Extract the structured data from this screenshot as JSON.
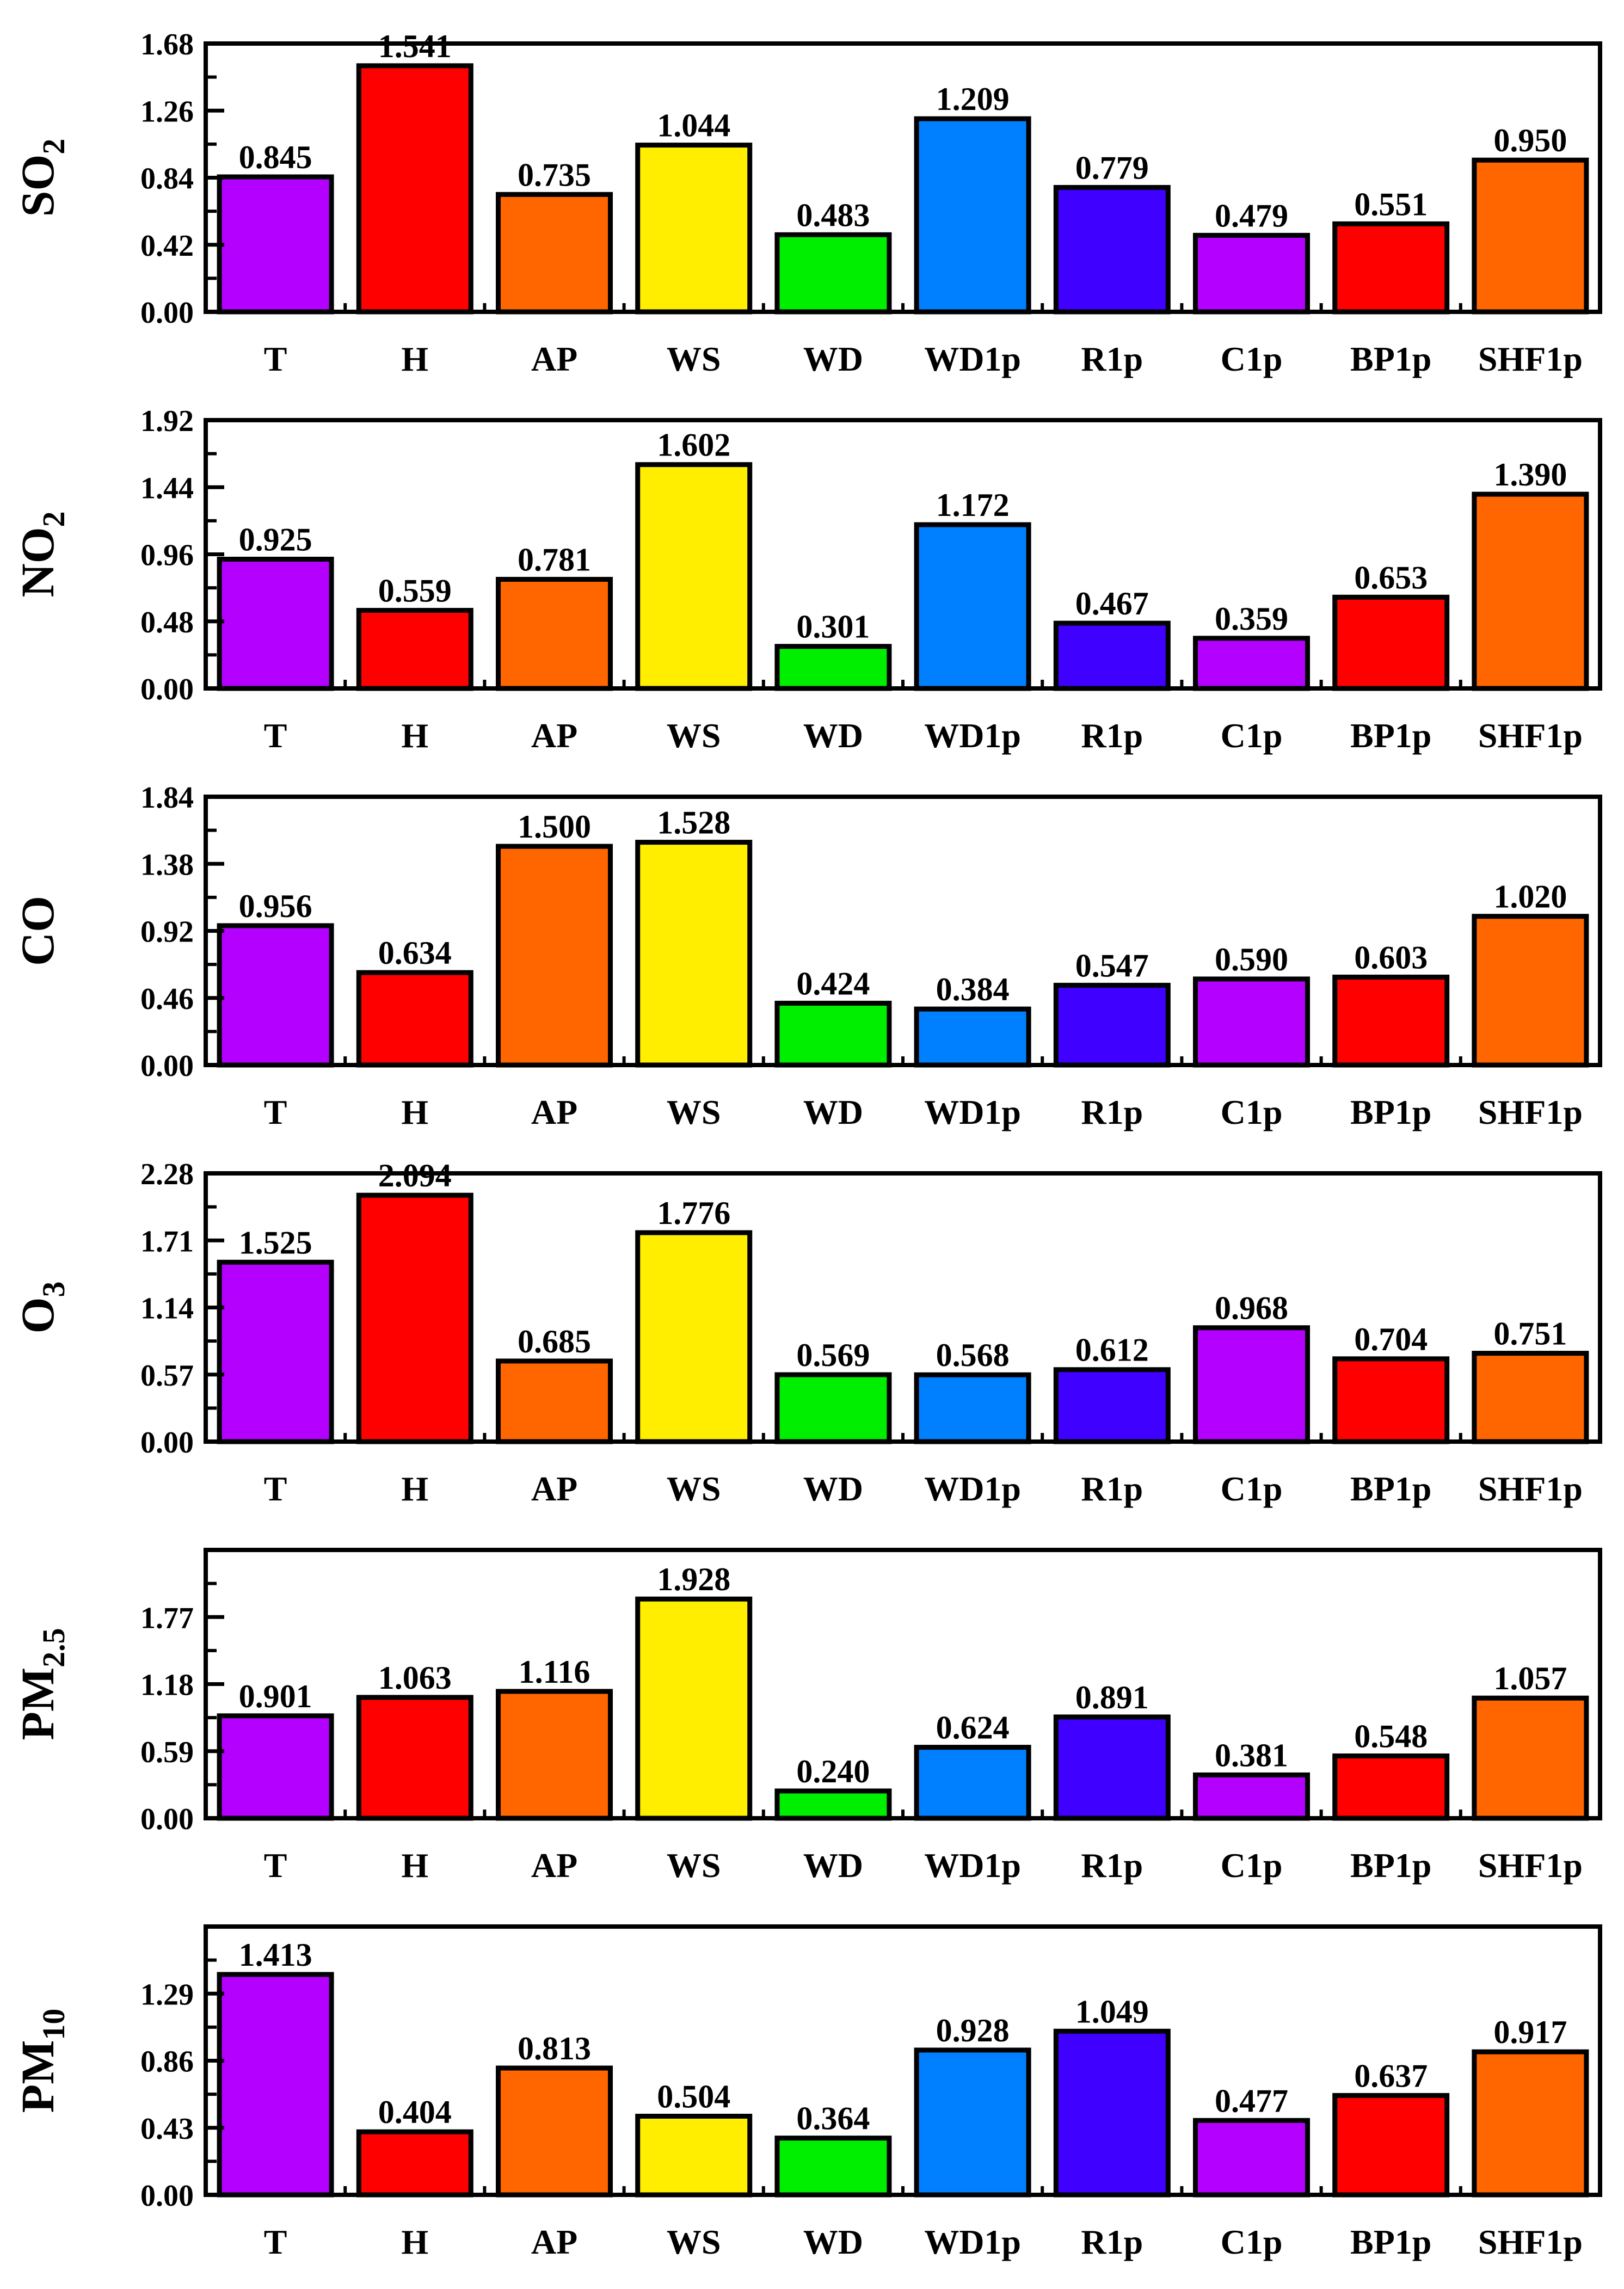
{
  "chart_data": [
    {
      "type": "bar",
      "ylabel": "SO",
      "ylabel_sub": "2",
      "categories": [
        "T",
        "H",
        "AP",
        "WS",
        "WD",
        "WD1p",
        "R1p",
        "C1p",
        "BP1p",
        "SHF1p"
      ],
      "values": [
        0.845,
        1.541,
        0.735,
        1.044,
        0.483,
        1.209,
        0.779,
        0.479,
        0.551,
        0.95
      ],
      "value_labels": [
        "0.845",
        "1.541",
        "0.735",
        "1.044",
        "0.483",
        "1.209",
        "0.779",
        "0.479",
        "0.551",
        "0.950"
      ],
      "ylim": [
        0,
        1.68
      ],
      "yticks": [
        0,
        0.42,
        0.84,
        1.26,
        1.68
      ],
      "ytick_labels": [
        "0.00",
        "0.42",
        "0.84",
        "1.26",
        "1.68"
      ]
    },
    {
      "type": "bar",
      "ylabel": "NO",
      "ylabel_sub": "2",
      "categories": [
        "T",
        "H",
        "AP",
        "WS",
        "WD",
        "WD1p",
        "R1p",
        "C1p",
        "BP1p",
        "SHF1p"
      ],
      "values": [
        0.925,
        0.559,
        0.781,
        1.602,
        0.301,
        1.172,
        0.467,
        0.359,
        0.653,
        1.39
      ],
      "value_labels": [
        "0.925",
        "0.559",
        "0.781",
        "1.602",
        "0.301",
        "1.172",
        "0.467",
        "0.359",
        "0.653",
        "1.390"
      ],
      "ylim": [
        0,
        1.92
      ],
      "yticks": [
        0,
        0.48,
        0.96,
        1.44,
        1.92
      ],
      "ytick_labels": [
        "0.00",
        "0.48",
        "0.96",
        "1.44",
        "1.92"
      ]
    },
    {
      "type": "bar",
      "ylabel": "CO",
      "ylabel_sub": "",
      "categories": [
        "T",
        "H",
        "AP",
        "WS",
        "WD",
        "WD1p",
        "R1p",
        "C1p",
        "BP1p",
        "SHF1p"
      ],
      "values": [
        0.956,
        0.634,
        1.5,
        1.528,
        0.424,
        0.384,
        0.547,
        0.59,
        0.603,
        1.02
      ],
      "value_labels": [
        "0.956",
        "0.634",
        "1.500",
        "1.528",
        "0.424",
        "0.384",
        "0.547",
        "0.590",
        "0.603",
        "1.020"
      ],
      "ylim": [
        0,
        1.84
      ],
      "yticks": [
        0,
        0.46,
        0.92,
        1.38,
        1.84
      ],
      "ytick_labels": [
        "0.00",
        "0.46",
        "0.92",
        "1.38",
        "1.84"
      ]
    },
    {
      "type": "bar",
      "ylabel": "O",
      "ylabel_sub": "3",
      "categories": [
        "T",
        "H",
        "AP",
        "WS",
        "WD",
        "WD1p",
        "R1p",
        "C1p",
        "BP1p",
        "SHF1p"
      ],
      "values": [
        1.525,
        2.094,
        0.685,
        1.776,
        0.569,
        0.568,
        0.612,
        0.968,
        0.704,
        0.751
      ],
      "value_labels": [
        "1.525",
        "2.094",
        "0.685",
        "1.776",
        "0.569",
        "0.568",
        "0.612",
        "0.968",
        "0.704",
        "0.751"
      ],
      "ylim": [
        0,
        2.28
      ],
      "yticks": [
        0,
        0.57,
        1.14,
        1.71,
        2.28
      ],
      "ytick_labels": [
        "0.00",
        "0.57",
        "1.14",
        "1.71",
        "2.28"
      ]
    },
    {
      "type": "bar",
      "ylabel": "PM",
      "ylabel_sub": "2.5",
      "categories": [
        "T",
        "H",
        "AP",
        "WS",
        "WD",
        "WD1p",
        "R1p",
        "C1p",
        "BP1p",
        "SHF1p"
      ],
      "values": [
        0.901,
        1.063,
        1.116,
        1.928,
        0.24,
        0.624,
        0.891,
        0.381,
        0.548,
        1.057
      ],
      "value_labels": [
        "0.901",
        "1.063",
        "1.116",
        "1.928",
        "0.240",
        "0.624",
        "0.891",
        "0.381",
        "0.548",
        "1.057"
      ],
      "ylim": [
        0,
        2.36
      ],
      "yticks": [
        0,
        0.59,
        1.18,
        1.77
      ],
      "ytick_labels": [
        "0.00",
        "0.59",
        "1.18",
        "1.77"
      ]
    },
    {
      "type": "bar",
      "ylabel": "PM",
      "ylabel_sub": "10",
      "categories": [
        "T",
        "H",
        "AP",
        "WS",
        "WD",
        "WD1p",
        "R1p",
        "C1p",
        "BP1p",
        "SHF1p"
      ],
      "values": [
        1.413,
        0.404,
        0.813,
        0.504,
        0.364,
        0.928,
        1.049,
        0.477,
        0.637,
        0.917
      ],
      "value_labels": [
        "1.413",
        "0.404",
        "0.813",
        "0.504",
        "0.364",
        "0.928",
        "1.049",
        "0.477",
        "0.637",
        "0.917"
      ],
      "ylim": [
        0,
        1.72
      ],
      "yticks": [
        0,
        0.43,
        0.86,
        1.29
      ],
      "ytick_labels": [
        "0.00",
        "0.43",
        "0.86",
        "1.29"
      ]
    }
  ],
  "colors": {
    "bars": [
      "#b300ff",
      "#ff0000",
      "#ff6600",
      "#ffee00",
      "#00ee00",
      "#0080ff",
      "#4000ff",
      "#b300ff",
      "#ff0000",
      "#ff6600"
    ],
    "outline": "#000000",
    "background": "#ffffff"
  }
}
